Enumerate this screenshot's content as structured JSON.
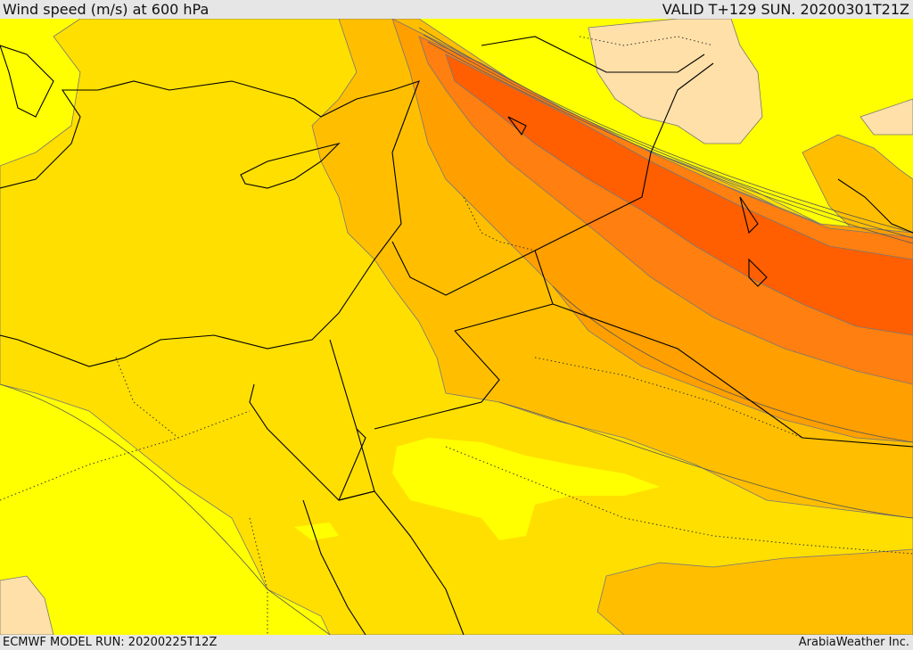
{
  "header": {
    "title": "Wind speed (m/s) at 600 hPa",
    "valid": "VALID T+129 SUN. 20200301T21Z"
  },
  "footer": {
    "model_run": "ECMWF MODEL RUN: 20200225T12Z",
    "credit": "ArabiaWeather Inc."
  },
  "map": {
    "field": "wind-speed-600hPa",
    "colors": {
      "band_1": "#ffff00",
      "band_2": "#ffdf00",
      "band_3": "#ffbf00",
      "band_4": "#ff9f00",
      "band_5": "#ff7f10",
      "band_6": "#ff5f00",
      "calm": "#ffe0a8",
      "coastline": "#000000",
      "contour": "#555555"
    }
  }
}
